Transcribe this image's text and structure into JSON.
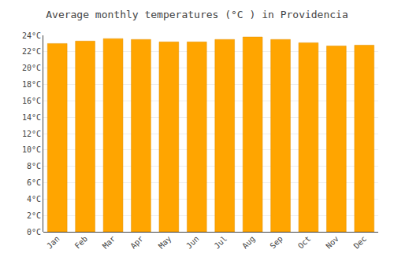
{
  "chart_data": {
    "type": "bar",
    "title": "Average monthly temperatures (°C ) in Providencia",
    "categories": [
      "Jan",
      "Feb",
      "Mar",
      "Apr",
      "May",
      "Jun",
      "Jul",
      "Aug",
      "Sep",
      "Oct",
      "Nov",
      "Dec"
    ],
    "values": [
      23.0,
      23.3,
      23.6,
      23.5,
      23.2,
      23.2,
      23.5,
      23.8,
      23.5,
      23.1,
      22.7,
      22.8
    ],
    "color": "#FFA500",
    "ylim": [
      0,
      24
    ],
    "yticks": [
      {
        "value": 0,
        "label": "0°C"
      },
      {
        "value": 2,
        "label": "2°C"
      },
      {
        "value": 4,
        "label": "4°C"
      },
      {
        "value": 6,
        "label": "6°C"
      },
      {
        "value": 8,
        "label": "8°C"
      },
      {
        "value": 10,
        "label": "10°C"
      },
      {
        "value": 12,
        "label": "12°C"
      },
      {
        "value": 14,
        "label": "14°C"
      },
      {
        "value": 16,
        "label": "16°C"
      },
      {
        "value": 18,
        "label": "18°C"
      },
      {
        "value": 20,
        "label": "20°C"
      },
      {
        "value": 22,
        "label": "22°C"
      },
      {
        "value": 24,
        "label": "24°C"
      }
    ],
    "grid": true
  }
}
